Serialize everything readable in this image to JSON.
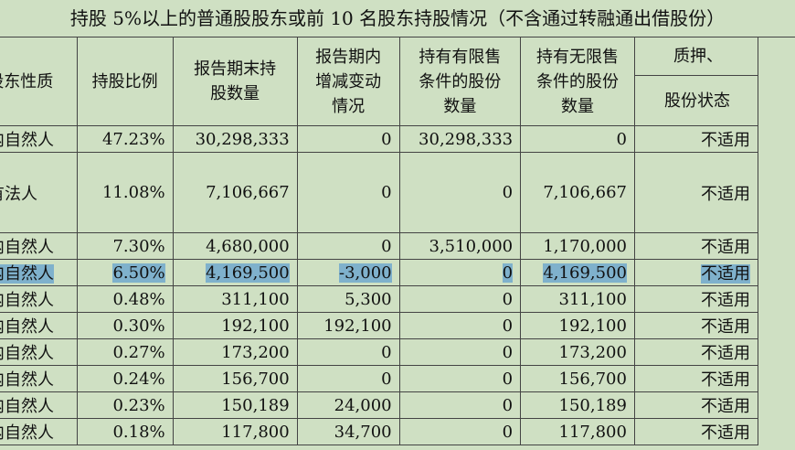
{
  "title": "持股 5%以上的普通股股东或前 10 名股东持股情况（不含通过转融通出借股份）",
  "headers": {
    "nature": "股东性质",
    "ratio": "持股比例",
    "end_qty": [
      "报告期末持",
      "股数量"
    ],
    "change": [
      "报告期内",
      "增减变动",
      "情况"
    ],
    "restricted": [
      "持有有限售",
      "条件的股份",
      "数量"
    ],
    "unrestricted": [
      "持有无限售",
      "条件的股份",
      "数量"
    ],
    "pledge": "质押、",
    "share_status": "股份状态"
  },
  "rows": [
    {
      "nature": "境内自然人",
      "ratio": "47.23%",
      "end_qty": "30,298,333",
      "change": "0",
      "restricted": "30,298,333",
      "unrestricted": "0",
      "status": "不适用"
    },
    {
      "nature": "国有法人",
      "ratio": "11.08%",
      "end_qty": "7,106,667",
      "change": "0",
      "restricted": "0",
      "unrestricted": "7,106,667",
      "status": "不适用"
    },
    {
      "nature": "境内自然人",
      "ratio": "7.30%",
      "end_qty": "4,680,000",
      "change": "0",
      "restricted": "3,510,000",
      "unrestricted": "1,170,000",
      "status": "不适用"
    },
    {
      "nature": "境内自然人",
      "ratio": "6.50%",
      "end_qty": "4,169,500",
      "change": "-3,000",
      "restricted": "0",
      "unrestricted": "4,169,500",
      "status": "不适用"
    },
    {
      "nature": "境内自然人",
      "ratio": "0.48%",
      "end_qty": "311,100",
      "change": "5,300",
      "restricted": "0",
      "unrestricted": "311,100",
      "status": "不适用"
    },
    {
      "nature": "境内自然人",
      "ratio": "0.30%",
      "end_qty": "192,100",
      "change": "192,100",
      "restricted": "0",
      "unrestricted": "192,100",
      "status": "不适用"
    },
    {
      "nature": "境内自然人",
      "ratio": "0.27%",
      "end_qty": "173,200",
      "change": "0",
      "restricted": "0",
      "unrestricted": "173,200",
      "status": "不适用"
    },
    {
      "nature": "境内自然人",
      "ratio": "0.24%",
      "end_qty": "156,700",
      "change": "0",
      "restricted": "0",
      "unrestricted": "156,700",
      "status": "不适用"
    },
    {
      "nature": "境内自然人",
      "ratio": "0.23%",
      "end_qty": "150,189",
      "change": "24,000",
      "restricted": "0",
      "unrestricted": "150,189",
      "status": "不适用"
    },
    {
      "nature": "境内自然人",
      "ratio": "0.18%",
      "end_qty": "117,800",
      "change": "34,700",
      "restricted": "0",
      "unrestricted": "117,800",
      "status": "不适用"
    }
  ],
  "highlight_row_index": 3,
  "highlight_color": "#7fb1cc"
}
